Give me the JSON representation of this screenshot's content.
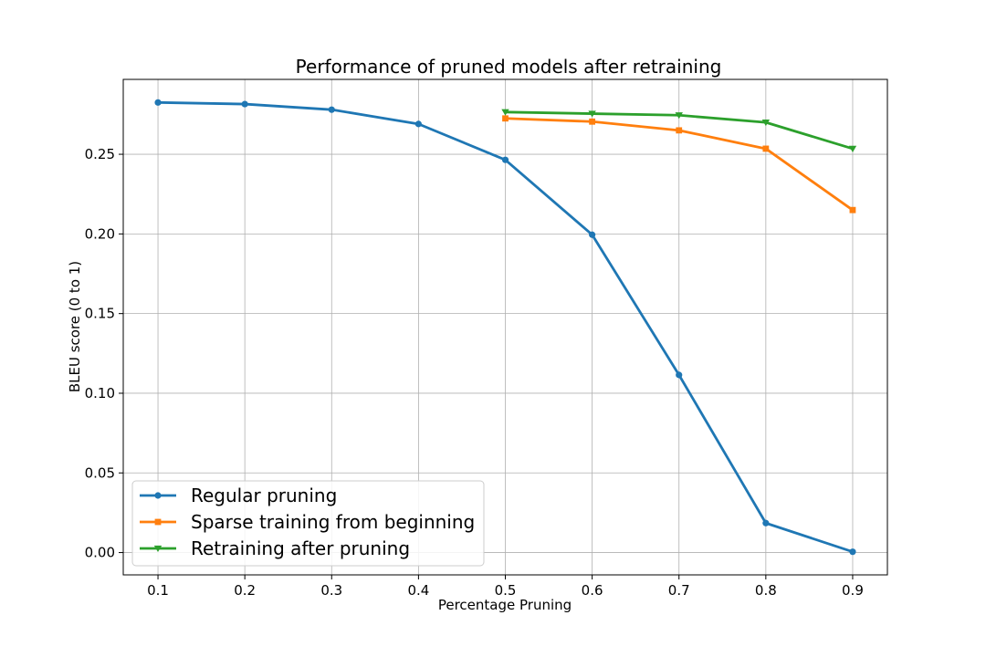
{
  "chart_data": {
    "type": "line",
    "title": "Performance of pruned models after retraining",
    "xlabel": "Percentage Pruning",
    "ylabel": "BLEU score (0 to 1)",
    "xlim": [
      0.06,
      0.94
    ],
    "ylim": [
      -0.014,
      0.297
    ],
    "xticks": [
      "0.1",
      "0.2",
      "0.3",
      "0.4",
      "0.5",
      "0.6",
      "0.7",
      "0.8",
      "0.9"
    ],
    "yticks": [
      "0.00",
      "0.05",
      "0.10",
      "0.15",
      "0.20",
      "0.25"
    ],
    "grid": true,
    "legend_position": "lower-left",
    "series": [
      {
        "name": "Regular pruning",
        "color": "#1f77b4",
        "marker": "circle",
        "x": [
          0.1,
          0.2,
          0.3,
          0.4,
          0.5,
          0.6,
          0.7,
          0.8,
          0.9
        ],
        "y": [
          0.2825,
          0.2815,
          0.278,
          0.269,
          0.2465,
          0.1995,
          0.1115,
          0.0185,
          0.0005
        ]
      },
      {
        "name": "Sparse training from beginning",
        "color": "#ff7f0e",
        "marker": "square",
        "x": [
          0.5,
          0.6,
          0.7,
          0.8,
          0.9
        ],
        "y": [
          0.2725,
          0.2705,
          0.265,
          0.2535,
          0.215
        ]
      },
      {
        "name": "Retraining after pruning",
        "color": "#2ca02c",
        "marker": "triangle-down",
        "x": [
          0.5,
          0.6,
          0.7,
          0.8,
          0.9
        ],
        "y": [
          0.2765,
          0.2755,
          0.2745,
          0.27,
          0.2535
        ]
      }
    ]
  }
}
